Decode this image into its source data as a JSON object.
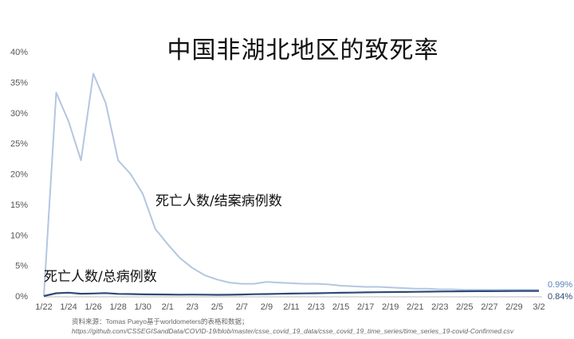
{
  "chart_data": {
    "type": "line",
    "title": "中国非湖北地区的致死率",
    "xlabel": "",
    "ylabel": "",
    "ylim": [
      0,
      40
    ],
    "yticks": [
      "0%",
      "5%",
      "10%",
      "15%",
      "20%",
      "25%",
      "30%",
      "35%",
      "40%"
    ],
    "x": [
      "1/22",
      "1/23",
      "1/24",
      "1/25",
      "1/26",
      "1/27",
      "1/28",
      "1/29",
      "1/30",
      "1/31",
      "2/1",
      "2/2",
      "2/3",
      "2/4",
      "2/5",
      "2/6",
      "2/7",
      "2/8",
      "2/9",
      "2/10",
      "2/11",
      "2/12",
      "2/13",
      "2/14",
      "2/15",
      "2/16",
      "2/17",
      "2/18",
      "2/19",
      "2/20",
      "2/21",
      "2/22",
      "2/23",
      "2/24",
      "2/25",
      "2/26",
      "2/27",
      "2/28",
      "2/29",
      "3/1",
      "3/2"
    ],
    "xticks": [
      "1/22",
      "1/24",
      "1/26",
      "1/28",
      "1/30",
      "2/1",
      "2/3",
      "2/5",
      "2/7",
      "2/9",
      "2/11",
      "2/13",
      "2/15",
      "2/17",
      "2/19",
      "2/21",
      "2/23",
      "2/25",
      "2/27",
      "2/29",
      "3/2"
    ],
    "grid": false,
    "series": [
      {
        "name": "死亡人数/结案病例数",
        "color": "#b4c6e0",
        "values": [
          0,
          33.3,
          28.6,
          22.2,
          36.4,
          31.6,
          22.2,
          20.0,
          16.7,
          11.0,
          8.5,
          6.2,
          4.6,
          3.4,
          2.7,
          2.2,
          2.0,
          2.0,
          2.3,
          2.2,
          2.1,
          2.0,
          2.0,
          1.9,
          1.7,
          1.6,
          1.5,
          1.5,
          1.4,
          1.3,
          1.2,
          1.2,
          1.1,
          1.1,
          1.0,
          1.0,
          1.0,
          1.0,
          1.0,
          1.0,
          0.99
        ],
        "end_label": "0.99%"
      },
      {
        "name": "死亡人数/总病例数",
        "color": "#2e4a78",
        "values": [
          0,
          0.45,
          0.55,
          0.38,
          0.42,
          0.48,
          0.35,
          0.33,
          0.28,
          0.26,
          0.25,
          0.22,
          0.23,
          0.22,
          0.2,
          0.21,
          0.25,
          0.3,
          0.33,
          0.36,
          0.4,
          0.43,
          0.46,
          0.5,
          0.53,
          0.56,
          0.6,
          0.62,
          0.65,
          0.67,
          0.69,
          0.72,
          0.74,
          0.76,
          0.78,
          0.79,
          0.8,
          0.81,
          0.82,
          0.83,
          0.84
        ],
        "end_label": "0.84%"
      }
    ],
    "source_line1": "资料来源：Tomas Pueyo基于worldometers的表格和数据；",
    "source_line2": "https://github.com/CSSEGISandData/COVID-19/blob/master/csse_covid_19_data/csse_covid_19_time_series/time_series_19-covid-Confirmed.csv"
  }
}
